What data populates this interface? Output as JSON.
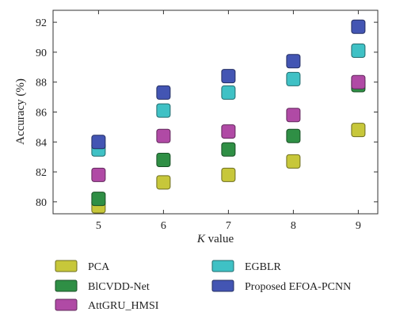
{
  "chart_data": {
    "type": "scatter",
    "title": "",
    "xlabel_prefix": "K",
    "xlabel_suffix": " value",
    "ylabel": "Accuracy (%)",
    "x": [
      5,
      6,
      7,
      8,
      9
    ],
    "xlim": [
      4.3,
      9.3
    ],
    "ylim": [
      79.2,
      92.8
    ],
    "xticks": [
      "5",
      "6",
      "7",
      "8",
      "9"
    ],
    "yticks": [
      "80",
      "82",
      "84",
      "86",
      "88",
      "90",
      "92"
    ],
    "ytick_values": [
      80,
      82,
      84,
      86,
      88,
      90,
      92
    ],
    "grid": false,
    "legend_position": "bottom",
    "marker": "rounded-square",
    "series": [
      {
        "name": "PCA",
        "color": "#c7c73a",
        "values": [
          79.7,
          81.3,
          81.8,
          82.7,
          84.8
        ]
      },
      {
        "name": "BlCVDD-Net",
        "color": "#2f8f45",
        "values": [
          80.2,
          82.8,
          83.5,
          84.4,
          87.8
        ]
      },
      {
        "name": "AttGRU_HMSI",
        "color": "#b04aa5",
        "values": [
          81.8,
          84.4,
          84.7,
          85.8,
          88.0
        ]
      },
      {
        "name": "EGBLR",
        "color": "#3fc1c5",
        "values": [
          83.5,
          86.1,
          87.3,
          88.2,
          90.1
        ]
      },
      {
        "name": "Proposed EFOA-PCNN",
        "color": "#4355b3",
        "values": [
          84.0,
          87.3,
          88.4,
          89.4,
          91.7
        ]
      }
    ]
  }
}
